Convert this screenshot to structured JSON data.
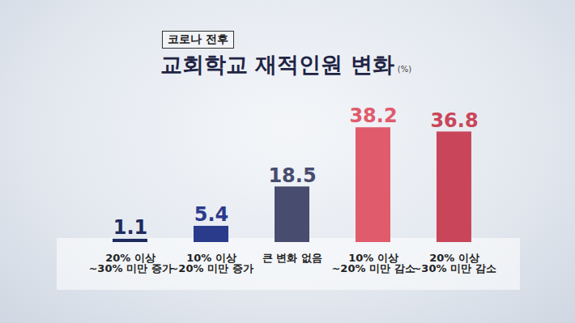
{
  "chart_data": {
    "type": "bar",
    "subtitle": "코로나 전후",
    "title": "교회학교 재적인원 변화",
    "ylabel": "(%)",
    "categories": [
      "20% 이상\n~30% 미만 증가",
      "10% 이상\n~20% 미만 증가",
      "큰 변화 없음",
      "10% 이상\n~20% 미만 감소",
      "20% 이상\n~30% 미만 감소"
    ],
    "values": [
      1.1,
      5.4,
      18.5,
      38.2,
      36.8
    ],
    "colors": [
      "#1e2a5e",
      "#2b3b8c",
      "#484c6e",
      "#e05b6c",
      "#c9465a"
    ],
    "ylim": [
      0,
      45
    ],
    "data_labels": true,
    "tick_labels": "x",
    "grid": false
  }
}
